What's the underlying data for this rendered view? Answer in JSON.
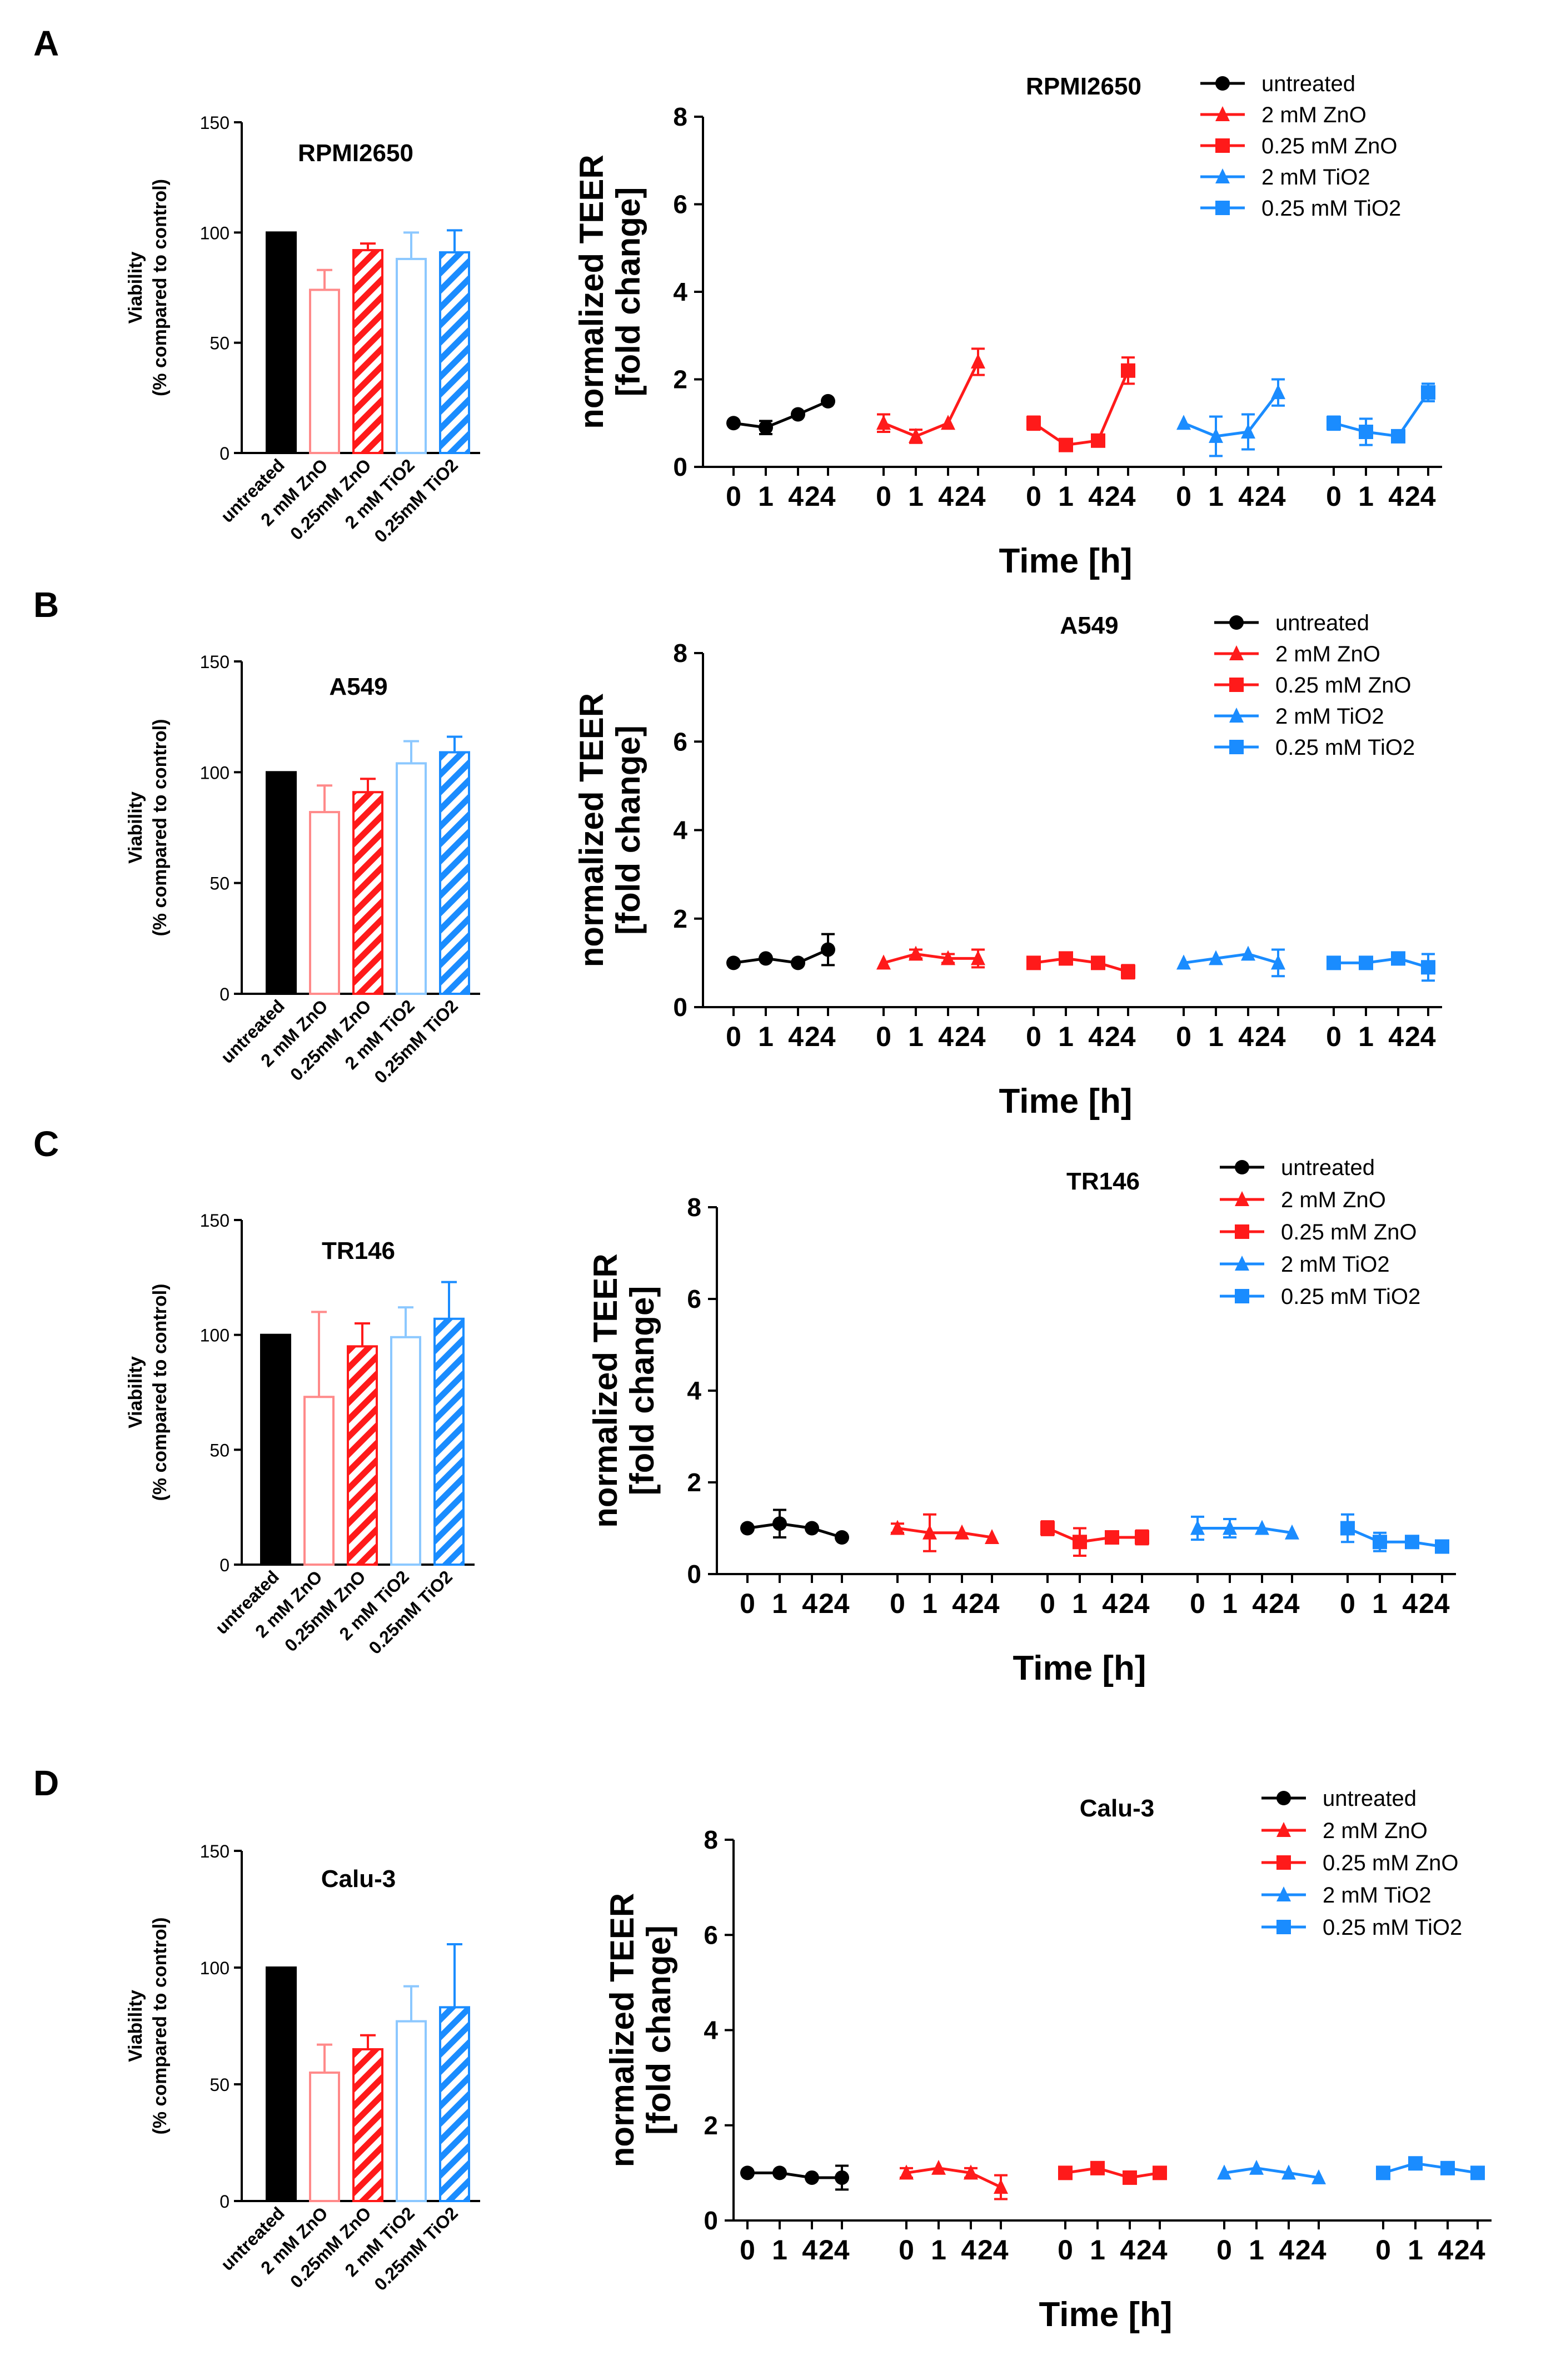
{
  "colors": {
    "untreated": "#000000",
    "zno": "#ff1a1a",
    "zno_light": "#ff8a8a",
    "tio2": "#1a8cff",
    "tio2_light": "#8cc8ff"
  },
  "chart_data": [
    {
      "panel": "A",
      "cell_line": "RPMI2650",
      "viability": {
        "type": "bar",
        "title": "RPMI2650",
        "ylabel_line1": "Viability",
        "ylabel_line2": "(% compared to control)",
        "ylim": [
          0,
          150
        ],
        "yticks": [
          0,
          50,
          100,
          150
        ],
        "categories": [
          "untreated",
          "2 mM ZnO",
          "0.25mM ZnO",
          "2 mM TiO2",
          "0.25mM TiO2"
        ],
        "values": [
          100,
          74,
          92,
          88,
          91
        ],
        "errors": [
          0,
          9,
          3,
          12,
          10
        ]
      },
      "teer": {
        "type": "line",
        "title": "RPMI2650",
        "ylabel_line1": "normalized TEER",
        "ylabel_line2": "[fold change]",
        "xlabel": "Time [h]",
        "ylim": [
          0,
          8
        ],
        "yticks": [
          0,
          2,
          4,
          6,
          8
        ],
        "x_tick_labels": [
          "0",
          "1",
          "4",
          "24"
        ],
        "series": [
          {
            "name": "untreated",
            "values": [
              1.0,
              0.9,
              1.2,
              1.5
            ],
            "errors": [
              0.05,
              0.15,
              0.05,
              0.05
            ]
          },
          {
            "name": "2 mM ZnO",
            "values": [
              1.0,
              0.7,
              1.0,
              2.4
            ],
            "errors": [
              0.2,
              0.15,
              0.05,
              0.3
            ]
          },
          {
            "name": "0.25 mM ZnO",
            "values": [
              1.0,
              0.5,
              0.6,
              2.2
            ],
            "errors": [
              0.15,
              0.1,
              0.05,
              0.3
            ]
          },
          {
            "name": "2 mM TiO2",
            "values": [
              1.0,
              0.7,
              0.8,
              1.7
            ],
            "errors": [
              0.05,
              0.45,
              0.4,
              0.3
            ]
          },
          {
            "name": "0.25 mM TiO2",
            "values": [
              1.0,
              0.8,
              0.7,
              1.7
            ],
            "errors": [
              0.15,
              0.3,
              0.05,
              0.2
            ]
          }
        ]
      }
    },
    {
      "panel": "B",
      "cell_line": "A549",
      "viability": {
        "type": "bar",
        "title": "A549",
        "ylabel_line1": "Viability",
        "ylabel_line2": "(% compared to control)",
        "ylim": [
          0,
          150
        ],
        "yticks": [
          0,
          50,
          100,
          150
        ],
        "categories": [
          "untreated",
          "2 mM ZnO",
          "0.25mM ZnO",
          "2 mM TiO2",
          "0.25mM TiO2"
        ],
        "values": [
          100,
          82,
          91,
          104,
          109
        ],
        "errors": [
          0,
          12,
          6,
          10,
          7
        ]
      },
      "teer": {
        "type": "line",
        "title": "A549",
        "ylabel_line1": "normalized TEER",
        "ylabel_line2": "[fold change]",
        "xlabel": "Time [h]",
        "ylim": [
          0,
          8
        ],
        "yticks": [
          0,
          2,
          4,
          6,
          8
        ],
        "x_tick_labels": [
          "0",
          "1",
          "4",
          "24"
        ],
        "series": [
          {
            "name": "untreated",
            "values": [
              1.0,
              1.1,
              1.0,
              1.3
            ],
            "errors": [
              0.05,
              0.05,
              0.05,
              0.35
            ]
          },
          {
            "name": "2 mM ZnO",
            "values": [
              1.0,
              1.2,
              1.1,
              1.1
            ],
            "errors": [
              0.05,
              0.1,
              0.1,
              0.2
            ]
          },
          {
            "name": "0.25 mM ZnO",
            "values": [
              1.0,
              1.1,
              1.0,
              0.8
            ],
            "errors": [
              0.1,
              0.05,
              0.05,
              0.15
            ]
          },
          {
            "name": "2 mM TiO2",
            "values": [
              1.0,
              1.1,
              1.2,
              1.0
            ],
            "errors": [
              0.05,
              0.05,
              0.05,
              0.3
            ]
          },
          {
            "name": "0.25 mM TiO2",
            "values": [
              1.0,
              1.0,
              1.1,
              0.9
            ],
            "errors": [
              0.05,
              0.05,
              0.05,
              0.3
            ]
          }
        ]
      }
    },
    {
      "panel": "C",
      "cell_line": "TR146",
      "viability": {
        "type": "bar",
        "title": "TR146",
        "ylabel_line1": "Viability",
        "ylabel_line2": "(% compared to control)",
        "ylim": [
          0,
          150
        ],
        "yticks": [
          0,
          50,
          100,
          150
        ],
        "categories": [
          "untreated",
          "2 mM ZnO",
          "0.25mM ZnO",
          "2 mM TiO2",
          "0.25mM TiO2"
        ],
        "values": [
          100,
          73,
          95,
          99,
          107
        ],
        "errors": [
          0,
          37,
          10,
          13,
          16
        ]
      },
      "teer": {
        "type": "line",
        "title": "TR146",
        "ylabel_line1": "normalized TEER",
        "ylabel_line2": "[fold change]",
        "xlabel": "Time [h]",
        "ylim": [
          0,
          8
        ],
        "yticks": [
          0,
          2,
          4,
          6,
          8
        ],
        "x_tick_labels": [
          "0",
          "1",
          "4",
          "24"
        ],
        "series": [
          {
            "name": "untreated",
            "values": [
              1.0,
              1.1,
              1.0,
              0.8
            ],
            "errors": [
              0.05,
              0.3,
              0.05,
              0.05
            ]
          },
          {
            "name": "2 mM ZnO",
            "values": [
              1.0,
              0.9,
              0.9,
              0.8
            ],
            "errors": [
              0.1,
              0.4,
              0.05,
              0.05
            ]
          },
          {
            "name": "0.25 mM ZnO",
            "values": [
              1.0,
              0.7,
              0.8,
              0.8
            ],
            "errors": [
              0.15,
              0.3,
              0.05,
              0.15
            ]
          },
          {
            "name": "2 mM TiO2",
            "values": [
              1.0,
              1.0,
              1.0,
              0.9
            ],
            "errors": [
              0.25,
              0.2,
              0.05,
              0.05
            ]
          },
          {
            "name": "0.25 mM TiO2",
            "values": [
              1.0,
              0.7,
              0.7,
              0.6
            ],
            "errors": [
              0.3,
              0.2,
              0.05,
              0.05
            ]
          }
        ]
      }
    },
    {
      "panel": "D",
      "cell_line": "Calu-3",
      "viability": {
        "type": "bar",
        "title": "Calu-3",
        "ylabel_line1": "Viability",
        "ylabel_line2": "(% compared to control)",
        "ylim": [
          0,
          150
        ],
        "yticks": [
          0,
          50,
          100,
          150
        ],
        "categories": [
          "untreated",
          "2 mM ZnO",
          "0.25mM ZnO",
          "2 mM TiO2",
          "0.25mM TiO2"
        ],
        "values": [
          100,
          55,
          65,
          77,
          83
        ],
        "errors": [
          0,
          12,
          6,
          15,
          27
        ]
      },
      "teer": {
        "type": "line",
        "title": "Calu-3",
        "ylabel_line1": "normalized TEER",
        "ylabel_line2": "[fold change]",
        "xlabel": "Time [h]",
        "ylim": [
          0,
          8
        ],
        "yticks": [
          0,
          2,
          4,
          6,
          8
        ],
        "x_tick_labels": [
          "0",
          "1",
          "4",
          "24"
        ],
        "series": [
          {
            "name": "untreated",
            "values": [
              1.0,
              1.0,
              0.9,
              0.9
            ],
            "errors": [
              0.05,
              0.05,
              0.05,
              0.25
            ]
          },
          {
            "name": "2 mM ZnO",
            "values": [
              1.0,
              1.1,
              1.0,
              0.7
            ],
            "errors": [
              0.1,
              0.05,
              0.1,
              0.25
            ]
          },
          {
            "name": "0.25 mM ZnO",
            "values": [
              1.0,
              1.1,
              0.9,
              1.0
            ],
            "errors": [
              0.1,
              0.1,
              0.05,
              0.05
            ]
          },
          {
            "name": "2 mM TiO2",
            "values": [
              1.0,
              1.1,
              1.0,
              0.9
            ],
            "errors": [
              0.05,
              0.05,
              0.05,
              0.05
            ]
          },
          {
            "name": "0.25 mM TiO2",
            "values": [
              1.0,
              1.2,
              1.1,
              1.0
            ],
            "errors": [
              0.05,
              0.05,
              0.05,
              0.05
            ]
          }
        ]
      }
    }
  ]
}
